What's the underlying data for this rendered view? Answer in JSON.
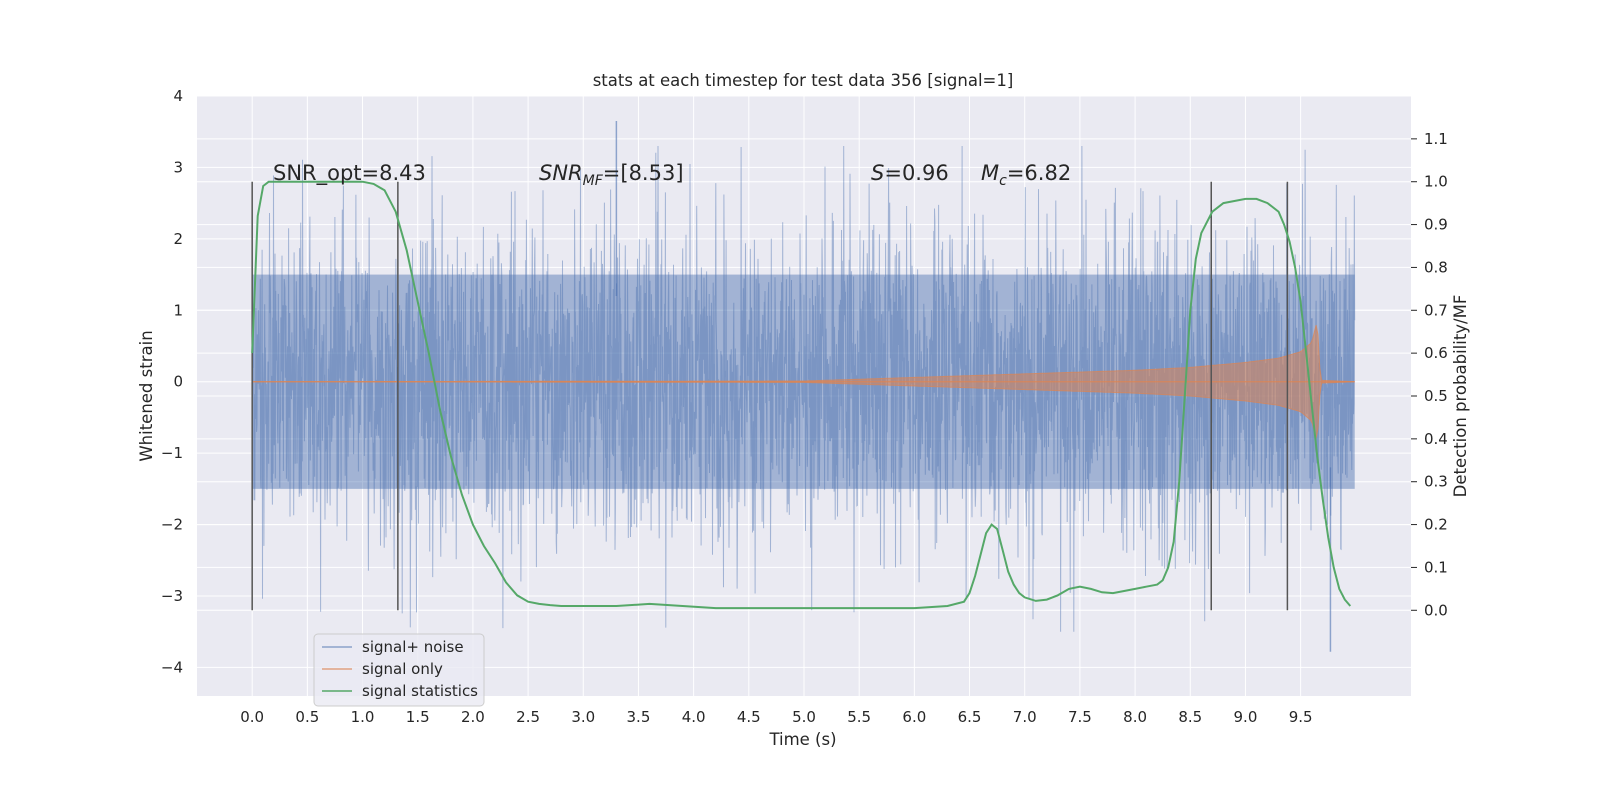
{
  "chart_data": {
    "type": "line",
    "title": "stats at each timestep for test data 356 [signal=1]",
    "xlabel": "Time (s)",
    "ylabel": "Whitened strain",
    "ylabel_right": "Detection probability/MF",
    "xlim": [
      -0.5,
      10.5
    ],
    "ylim": [
      -4.4,
      4.0
    ],
    "ylim_right": [
      -0.2,
      1.2
    ],
    "x_ticks": [
      0.0,
      0.5,
      1.0,
      1.5,
      2.0,
      2.5,
      3.0,
      3.5,
      4.0,
      4.5,
      5.0,
      5.5,
      6.0,
      6.5,
      7.0,
      7.5,
      8.0,
      8.5,
      9.0,
      9.5
    ],
    "x_tick_labels": [
      "0.0",
      "0.5",
      "1.0",
      "1.5",
      "2.0",
      "2.5",
      "3.0",
      "3.5",
      "4.0",
      "4.5",
      "5.0",
      "5.5",
      "6.0",
      "6.5",
      "7.0",
      "7.5",
      "8.0",
      "8.5",
      "9.0",
      "9.5"
    ],
    "y_ticks": [
      -4,
      -3,
      -2,
      -1,
      0,
      1,
      2,
      3,
      4
    ],
    "y_tick_labels": [
      "−4",
      "−3",
      "−2",
      "−1",
      "0",
      "1",
      "2",
      "3",
      "4"
    ],
    "y_ticks_right": [
      0.0,
      0.1,
      0.2,
      0.3,
      0.4,
      0.5,
      0.6,
      0.7,
      0.8,
      0.9,
      1.0,
      1.1
    ],
    "y_tick_labels_right": [
      "0.0",
      "0.1",
      "0.2",
      "0.3",
      "0.4",
      "0.5",
      "0.6",
      "0.7",
      "0.8",
      "0.9",
      "1.0",
      "1.1"
    ],
    "grid": true,
    "legend_position": "bottom-left",
    "annotations": {
      "snr_opt": "SNR_opt=8.43",
      "snr_mf_main": "SNR",
      "snr_mf_sub": "MF",
      "snr_mf_value": "=[8.53]",
      "s_symbol": "S",
      "s_value": "=0.96",
      "mc_symbol": "M",
      "mc_sub": "c",
      "mc_value": "=6.82"
    },
    "colors": {
      "background": "#eaeaf2",
      "grid": "#ffffff",
      "noise": "#4c72b0",
      "signal": "#dd8452",
      "statistics": "#55a868",
      "vline": "#555555"
    },
    "series": [
      {
        "name": "signal+ noise",
        "kind": "noise",
        "x_range": [
          0.0,
          9.99
        ],
        "typical_abs": 1.5,
        "peak_max": 3.65,
        "peak_min": -3.78
      },
      {
        "name": "signal only",
        "kind": "chirp",
        "x_range": [
          0.0,
          9.99
        ],
        "envelope_x": [
          0.0,
          5.0,
          6.0,
          7.0,
          8.0,
          8.5,
          9.0,
          9.3,
          9.5,
          9.6,
          9.65,
          9.68,
          9.99
        ],
        "envelope_y": [
          0.0,
          0.01,
          0.06,
          0.11,
          0.16,
          0.2,
          0.27,
          0.33,
          0.42,
          0.55,
          0.85,
          0.02,
          0.0
        ]
      },
      {
        "name": "signal statistics",
        "axis": "right",
        "x": [
          0.0,
          0.05,
          0.1,
          0.15,
          0.2,
          0.3,
          0.5,
          0.8,
          1.0,
          1.1,
          1.2,
          1.3,
          1.4,
          1.5,
          1.6,
          1.7,
          1.8,
          1.9,
          2.0,
          2.1,
          2.2,
          2.3,
          2.4,
          2.5,
          2.6,
          2.7,
          2.8,
          3.0,
          3.3,
          3.6,
          3.9,
          4.2,
          4.5,
          5.0,
          5.5,
          6.0,
          6.3,
          6.45,
          6.5,
          6.55,
          6.6,
          6.65,
          6.7,
          6.75,
          6.8,
          6.85,
          6.9,
          6.95,
          7.0,
          7.1,
          7.2,
          7.3,
          7.4,
          7.5,
          7.6,
          7.7,
          7.8,
          7.9,
          8.0,
          8.1,
          8.2,
          8.25,
          8.3,
          8.35,
          8.4,
          8.45,
          8.5,
          8.55,
          8.6,
          8.7,
          8.8,
          8.9,
          9.0,
          9.1,
          9.2,
          9.3,
          9.35,
          9.4,
          9.45,
          9.5,
          9.55,
          9.6,
          9.65,
          9.7,
          9.75,
          9.8,
          9.85,
          9.9,
          9.95
        ],
        "y": [
          0.6,
          0.92,
          0.99,
          1.0,
          1.0,
          1.0,
          1.0,
          1.0,
          1.0,
          0.995,
          0.98,
          0.93,
          0.84,
          0.72,
          0.6,
          0.47,
          0.36,
          0.27,
          0.2,
          0.15,
          0.11,
          0.065,
          0.035,
          0.02,
          0.015,
          0.012,
          0.01,
          0.01,
          0.01,
          0.015,
          0.01,
          0.005,
          0.005,
          0.005,
          0.005,
          0.005,
          0.01,
          0.02,
          0.04,
          0.08,
          0.13,
          0.18,
          0.2,
          0.19,
          0.14,
          0.09,
          0.06,
          0.04,
          0.03,
          0.022,
          0.025,
          0.035,
          0.05,
          0.055,
          0.05,
          0.042,
          0.04,
          0.045,
          0.05,
          0.055,
          0.06,
          0.07,
          0.1,
          0.16,
          0.3,
          0.5,
          0.7,
          0.82,
          0.88,
          0.93,
          0.95,
          0.955,
          0.96,
          0.96,
          0.95,
          0.93,
          0.9,
          0.86,
          0.8,
          0.72,
          0.6,
          0.48,
          0.36,
          0.26,
          0.17,
          0.1,
          0.05,
          0.025,
          0.01
        ]
      }
    ],
    "vertical_lines": [
      {
        "x": 0.0,
        "y_span": [
          -3.2,
          2.8
        ]
      },
      {
        "x": 1.32,
        "y_span": [
          -3.2,
          2.8
        ]
      },
      {
        "x": 8.69,
        "y_span": [
          -3.2,
          2.8
        ]
      },
      {
        "x": 9.38,
        "y_span": [
          -3.2,
          2.8
        ]
      }
    ]
  }
}
